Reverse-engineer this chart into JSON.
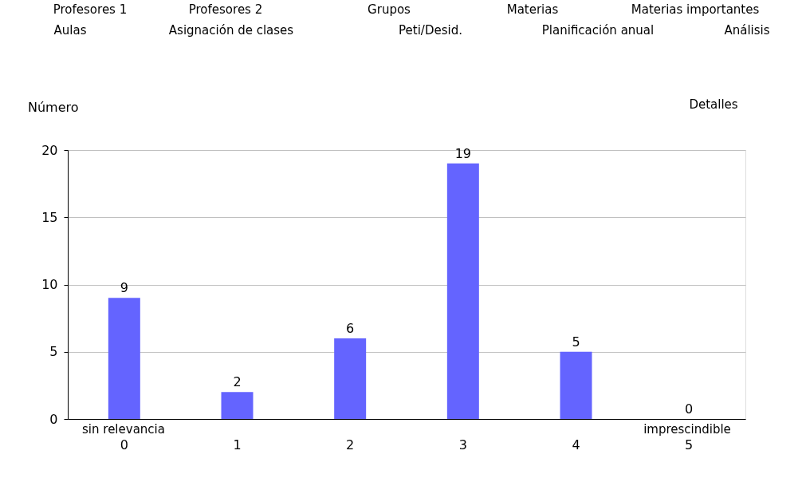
{
  "chart_data": {
    "type": "bar",
    "ylabel": "Número",
    "categories": [
      "0",
      "1",
      "2",
      "3",
      "4",
      "5"
    ],
    "values": [
      9,
      2,
      6,
      19,
      5,
      0
    ],
    "color": "#6464ff",
    "ylim": [
      0,
      20
    ],
    "yticks": [
      0,
      5,
      10,
      15,
      20
    ],
    "grid": "y",
    "data_labels": true,
    "annotations": [
      "sin relevancia",
      "imprescindible",
      "Profesores 1",
      "Profesores 2",
      "Grupos",
      "Materias",
      "Materias importantes",
      "Aulas",
      "Asignación de clases",
      "Peti/Desid.",
      "Planificación anual",
      "Análisis",
      "Detalles"
    ]
  }
}
